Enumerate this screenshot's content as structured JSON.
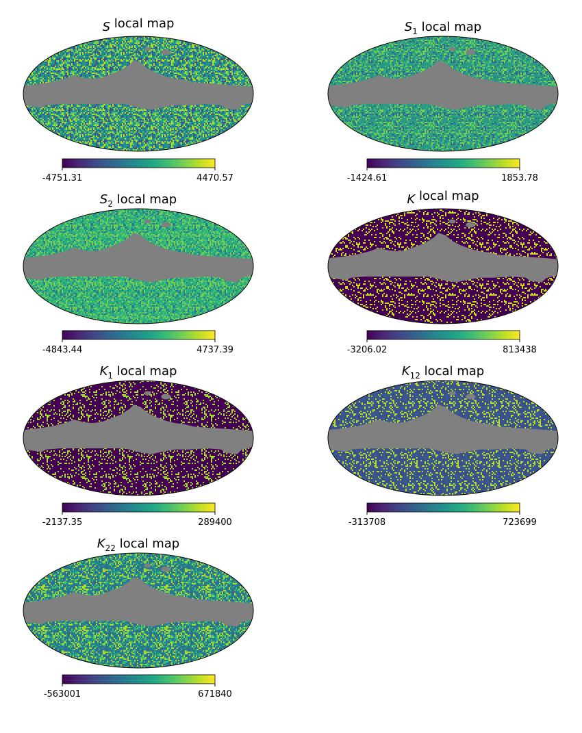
{
  "figure": {
    "panels": [
      {
        "title_main": "S",
        "title_sub": "",
        "title_rest": "local map",
        "cbar_min": "-4751.31",
        "cbar_max": "4470.57"
      },
      {
        "title_main": "S",
        "title_sub": "1",
        "title_rest": "local map",
        "cbar_min": "-1424.61",
        "cbar_max": "1853.78"
      },
      {
        "title_main": "S",
        "title_sub": "2",
        "title_rest": "local map",
        "cbar_min": "-4843.44",
        "cbar_max": "4737.39"
      },
      {
        "title_main": "K",
        "title_sub": "",
        "title_rest": "local map",
        "cbar_min": "-3206.02",
        "cbar_max": "813438"
      },
      {
        "title_main": "K",
        "title_sub": "1",
        "title_rest": "local map",
        "cbar_min": "-2137.35",
        "cbar_max": "289400"
      },
      {
        "title_main": "K",
        "title_sub": "12",
        "title_rest": "local map",
        "cbar_min": "-313708",
        "cbar_max": "723699"
      },
      {
        "title_main": "K",
        "title_sub": "22",
        "title_rest": "local map",
        "cbar_min": "-563001",
        "cbar_max": "671840"
      }
    ]
  },
  "chart_data": [
    {
      "type": "heatmap",
      "projection": "mollweide",
      "title": "S local map",
      "colormap": "viridis",
      "mask_color": "#808080",
      "dominant_colors": [
        "#21918c",
        "#3b528b",
        "#5ec962",
        "#b5de2b"
      ],
      "colorbar": {
        "min": -4751.31,
        "max": 4470.57
      }
    },
    {
      "type": "heatmap",
      "projection": "mollweide",
      "title": "S1 local map",
      "colormap": "viridis",
      "mask_color": "#808080",
      "dominant_colors": [
        "#2a9a85",
        "#3fbc73",
        "#7ad151",
        "#31688e"
      ],
      "colorbar": {
        "min": -1424.61,
        "max": 1853.78
      }
    },
    {
      "type": "heatmap",
      "projection": "mollweide",
      "title": "S2 local map",
      "colormap": "viridis",
      "mask_color": "#808080",
      "dominant_colors": [
        "#29af7f",
        "#4ac16d",
        "#7ad151",
        "#287c8e"
      ],
      "colorbar": {
        "min": -4843.44,
        "max": 4737.39
      }
    },
    {
      "type": "heatmap",
      "projection": "mollweide",
      "title": "K local map",
      "colormap": "viridis",
      "mask_color": "#808080",
      "dominant_colors": [
        "#440154",
        "#440154",
        "#440154",
        "#c8e020"
      ],
      "colorbar": {
        "min": -3206.02,
        "max": 813438
      }
    },
    {
      "type": "heatmap",
      "projection": "mollweide",
      "title": "K1 local map",
      "colormap": "viridis",
      "mask_color": "#808080",
      "dominant_colors": [
        "#440154",
        "#440154",
        "#440154",
        "#a5db36"
      ],
      "colorbar": {
        "min": -2137.35,
        "max": 289400
      }
    },
    {
      "type": "heatmap",
      "projection": "mollweide",
      "title": "K12 local map",
      "colormap": "viridis",
      "mask_color": "#808080",
      "dominant_colors": [
        "#3b528b",
        "#3e4989",
        "#35608d",
        "#b5de2b"
      ],
      "colorbar": {
        "min": -313708,
        "max": 723699
      }
    },
    {
      "type": "heatmap",
      "projection": "mollweide",
      "title": "K22 local map",
      "colormap": "viridis",
      "mask_color": "#808080",
      "dominant_colors": [
        "#2d708e",
        "#21918c",
        "#3fbc73",
        "#addc30"
      ],
      "colorbar": {
        "min": -563001,
        "max": 671840
      }
    }
  ]
}
